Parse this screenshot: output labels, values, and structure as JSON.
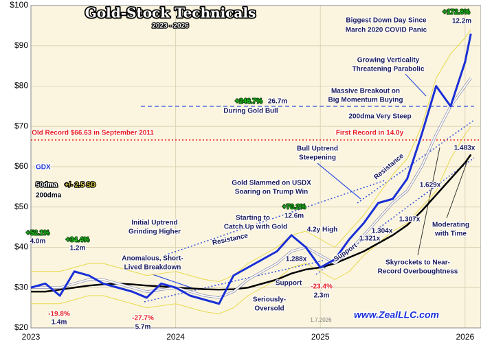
{
  "chart_data": {
    "type": "line",
    "title": "Gold-Stock Technicals",
    "subtitle": "2023 - 2026",
    "x": [
      2023.0,
      2023.1,
      2023.2,
      2023.3,
      2023.4,
      2023.5,
      2023.6,
      2023.7,
      2023.8,
      2023.9,
      2024.0,
      2024.1,
      2024.2,
      2024.3,
      2024.4,
      2024.5,
      2024.6,
      2024.7,
      2024.8,
      2024.9,
      2025.0,
      2025.1,
      2025.2,
      2025.3,
      2025.4,
      2025.5,
      2025.6,
      2025.7,
      2025.8,
      2025.9,
      2026.0,
      2026.04
    ],
    "series": [
      {
        "name": "GDX",
        "color": "#1a2fd6",
        "values": [
          30,
          31,
          28,
          34,
          33,
          31,
          30,
          29,
          27.5,
          31,
          30,
          28,
          27,
          26,
          33,
          35,
          37,
          39,
          43,
          40,
          35,
          37,
          42,
          46,
          51,
          52,
          57,
          68,
          80,
          75,
          86,
          93
        ]
      },
      {
        "name": "50dma",
        "color": "#ffffff",
        "values": [
          30,
          30,
          30,
          31,
          32,
          32,
          31,
          30,
          29,
          29.5,
          30,
          29,
          28,
          27.5,
          29,
          32,
          34,
          36,
          39,
          40,
          38,
          36,
          39,
          43,
          47,
          51,
          54,
          60,
          68,
          75,
          80,
          82
        ]
      },
      {
        "name": "+/- 2.5 SD",
        "color": "#e8d84a",
        "values": [
          34,
          34,
          34,
          35,
          36,
          36,
          35,
          34,
          33,
          33.5,
          34,
          33,
          32,
          31.5,
          33,
          36,
          38,
          40,
          43,
          44,
          42,
          40,
          44,
          48,
          53,
          58,
          62,
          70,
          82,
          88,
          92,
          94
        ],
        "lower": [
          26,
          26,
          26,
          27,
          28,
          28,
          27,
          26,
          25,
          25.5,
          26,
          25,
          24,
          23.5,
          25,
          28,
          30,
          32,
          35,
          36,
          34,
          32,
          34,
          38,
          41,
          44,
          46,
          50,
          54,
          62,
          68,
          70
        ]
      },
      {
        "name": "200dma",
        "color": "#000000",
        "values": [
          29,
          29,
          29.5,
          30,
          30.5,
          30.8,
          31,
          30.8,
          30.5,
          30.3,
          30,
          29.8,
          29.6,
          29.5,
          29.6,
          30,
          31,
          32,
          33.5,
          34.5,
          35,
          36,
          37.5,
          39,
          41,
          43,
          45.5,
          49,
          53,
          57,
          61,
          63
        ]
      }
    ],
    "xlim": [
      2023,
      2026.11
    ],
    "xticks": [
      2023,
      2024,
      2025,
      2026
    ],
    "ylim": [
      20,
      100
    ],
    "yticks": [
      {
        "value": 20,
        "label": "$20"
      },
      {
        "value": 30,
        "label": "$30"
      },
      {
        "value": 40,
        "label": "$40"
      },
      {
        "value": 50,
        "label": "$50"
      },
      {
        "value": 60,
        "label": "$60"
      },
      {
        "value": 70,
        "label": "$70"
      },
      {
        "value": 80,
        "label": "$80"
      },
      {
        "value": 90,
        "label": "$90"
      },
      {
        "value": 100,
        "label": "$100"
      }
    ],
    "grid": true,
    "annotations": [
      "Biggest Down Day Since",
      "March 2020 COVID Panic",
      "+172.8%",
      "12.2m",
      "Growing Verticality",
      "Threatening Parabolic",
      "Massive Breakout on",
      "Big Momentum Buying",
      "+246.7%",
      "26.7m",
      "During Gold Bull",
      "200dma Very Steep",
      "Old Record $66.63 in September 2011",
      "First Record in 14.0y",
      "Bull Uptrend",
      "Steepening",
      "Gold Slammed on USDX",
      "Soaring on Trump Win",
      "+70.2%",
      "12.6m",
      "Starting to",
      "Catch Up with Gold",
      "4.2y High",
      "Initial Uptrend",
      "Grinding Higher",
      "Resistance",
      "Resistance",
      "+52.1%",
      "4.0m",
      "+34.4%",
      "1.2m",
      "1.288x",
      "1.304x",
      "1.321x",
      "1.307x",
      "1.629x",
      "1.483x",
      "Moderating",
      "with Time",
      "Anomalous, Short-",
      "Lived Breakdown",
      "Support",
      "Support",
      "Skyrockets to Near-",
      "Record Overboughtness",
      "-23.4%",
      "2.3m",
      "Seriously-",
      "Oversold",
      "-19.8%",
      "1.4m",
      "-27.7%",
      "5.7m",
      "1.7.2026",
      "www.ZealLLC.com"
    ]
  }
}
